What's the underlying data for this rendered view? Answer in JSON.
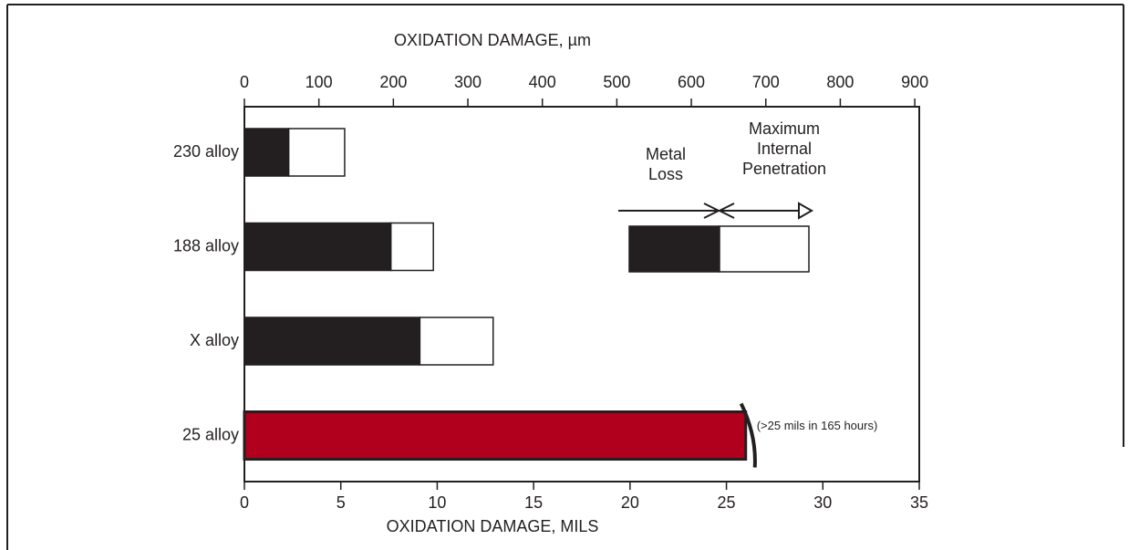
{
  "chart_data": {
    "type": "bar",
    "orientation": "horizontal",
    "stacked": true,
    "xlabel": "OXIDATION DAMAGE, MILS",
    "x2label": "OXIDATION DAMAGE, µm",
    "categories": [
      "230 alloy",
      "188 alloy",
      "X alloy",
      "25 alloy"
    ],
    "series": [
      {
        "name": "Metal Loss",
        "color": "#231f20",
        "values": [
          2.3,
          7.6,
          9.1,
          null
        ]
      },
      {
        "name": "Maximum Internal Penetration",
        "color": "#ffffff",
        "values": [
          2.9,
          2.2,
          3.8,
          null
        ]
      },
      {
        "color": "#b0001e",
        "values": [
          null,
          null,
          null,
          26
        ]
      }
    ],
    "annotations": [
      "(>25 mils in 165 hours)"
    ],
    "xlim": [
      0,
      35
    ],
    "xticks": [
      0,
      5,
      10,
      15,
      20,
      25,
      30,
      35
    ],
    "x2lim": [
      0,
      906
    ],
    "x2ticks": [
      0,
      100,
      200,
      300,
      400,
      500,
      600,
      700,
      800,
      900
    ],
    "grid": false
  }
}
